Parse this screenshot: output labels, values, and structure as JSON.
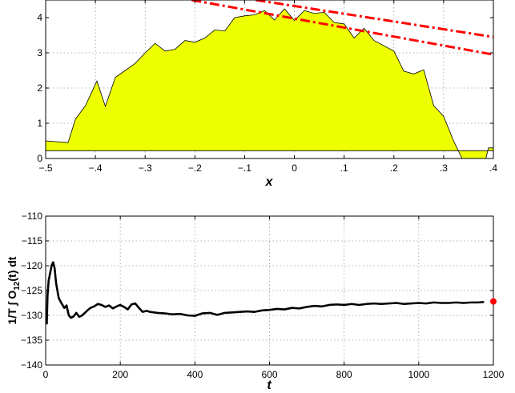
{
  "chart_data": [
    {
      "type": "area",
      "xlabel": "x",
      "ylabel": "",
      "xlim": [
        -0.5,
        0.4
      ],
      "ylim": [
        0,
        4.5
      ],
      "xticks": [
        -0.5,
        -0.4,
        -0.3,
        -0.2,
        -0.1,
        0,
        0.1,
        0.2,
        0.3,
        0.4
      ],
      "yticks": [
        0,
        1,
        2,
        3,
        4
      ],
      "grid": true,
      "fill_color": "#eeff00",
      "baseline": 0.22,
      "series": [
        {
          "values_label": "filled profile",
          "x": [
            -0.5,
            -0.455,
            -0.44,
            -0.42,
            -0.397,
            -0.38,
            -0.36,
            -0.34,
            -0.32,
            -0.3,
            -0.28,
            -0.26,
            -0.24,
            -0.22,
            -0.2,
            -0.18,
            -0.16,
            -0.14,
            -0.12,
            -0.1,
            -0.08,
            -0.06,
            -0.04,
            -0.02,
            0.0,
            0.02,
            0.04,
            0.06,
            0.08,
            0.1,
            0.12,
            0.14,
            0.16,
            0.18,
            0.2,
            0.22,
            0.24,
            0.26,
            0.28,
            0.3,
            0.32,
            0.337,
            0.345,
            0.385,
            0.39,
            0.4
          ],
          "y": [
            0.5,
            0.45,
            1.12,
            1.5,
            2.2,
            1.48,
            2.3,
            2.5,
            2.7,
            3.0,
            3.27,
            3.05,
            3.1,
            3.35,
            3.3,
            3.42,
            3.65,
            3.62,
            4.0,
            4.05,
            4.08,
            4.2,
            3.93,
            4.25,
            3.92,
            4.2,
            4.12,
            4.15,
            3.86,
            3.82,
            3.42,
            3.7,
            3.35,
            3.2,
            3.05,
            2.48,
            2.4,
            2.52,
            1.5,
            1.2,
            0.5,
            0.0,
            0.0,
            0.0,
            0.3,
            0.3
          ]
        }
      ],
      "lines": [
        {
          "color": "#ff0000",
          "x": [
            -0.0775,
            0.4
          ],
          "y": [
            4.5,
            3.45
          ]
        },
        {
          "color": "#ff0000",
          "x": [
            -0.2065,
            0.4
          ],
          "y": [
            4.5,
            2.95
          ]
        }
      ]
    },
    {
      "type": "line",
      "xlabel": "t",
      "ylabel": "1/T ∫ O12(t) dt",
      "ylabel_parts": {
        "pre": "1/T ∫ O",
        "sub": "12",
        "post": "(t) dt"
      },
      "xlim": [
        0,
        1200
      ],
      "ylim": [
        -140,
        -110
      ],
      "xticks": [
        0,
        200,
        400,
        600,
        800,
        1000,
        1200
      ],
      "yticks": [
        -140,
        -135,
        -130,
        -125,
        -120,
        -115,
        -110
      ],
      "grid": true,
      "series": [
        {
          "color": "#000000",
          "x": [
            3,
            5,
            8,
            12,
            16,
            20,
            24,
            28,
            35,
            42,
            50,
            56,
            62,
            68,
            75,
            82,
            90,
            98,
            105,
            112,
            120,
            130,
            140,
            150,
            160,
            170,
            180,
            190,
            200,
            210,
            220,
            230,
            240,
            250,
            260,
            270,
            280,
            300,
            320,
            340,
            360,
            380,
            400,
            420,
            440,
            460,
            480,
            500,
            520,
            540,
            560,
            580,
            600,
            620,
            640,
            660,
            680,
            700,
            720,
            740,
            760,
            780,
            800,
            820,
            840,
            860,
            880,
            900,
            920,
            940,
            960,
            980,
            1000,
            1020,
            1040,
            1060,
            1080,
            1100,
            1120,
            1140,
            1160,
            1175
          ],
          "y": [
            -131.8,
            -126,
            -123,
            -121.5,
            -120,
            -119.3,
            -120.5,
            -123.5,
            -126.5,
            -127.5,
            -128.5,
            -128,
            -130,
            -130.5,
            -130.2,
            -129.5,
            -130.3,
            -130,
            -129.5,
            -129,
            -128.5,
            -128.2,
            -127.7,
            -127.9,
            -128.3,
            -128,
            -128.6,
            -128.2,
            -127.9,
            -128.3,
            -128.8,
            -127.8,
            -127.6,
            -128.5,
            -129.3,
            -129.1,
            -129.3,
            -129.5,
            -129.6,
            -129.8,
            -129.7,
            -130,
            -130.1,
            -129.6,
            -129.5,
            -129.9,
            -129.5,
            -129.4,
            -129.3,
            -129.2,
            -129.3,
            -129,
            -128.9,
            -128.7,
            -128.8,
            -128.5,
            -128.6,
            -128.3,
            -128.1,
            -128.2,
            -127.9,
            -127.8,
            -127.9,
            -127.7,
            -127.9,
            -127.7,
            -127.6,
            -127.7,
            -127.6,
            -127.5,
            -127.7,
            -127.6,
            -127.5,
            -127.6,
            -127.4,
            -127.5,
            -127.5,
            -127.4,
            -127.5,
            -127.4,
            -127.4,
            -127.3
          ]
        }
      ],
      "marker": {
        "color": "#ff0000",
        "x": 1200,
        "y": -127.2
      }
    }
  ]
}
